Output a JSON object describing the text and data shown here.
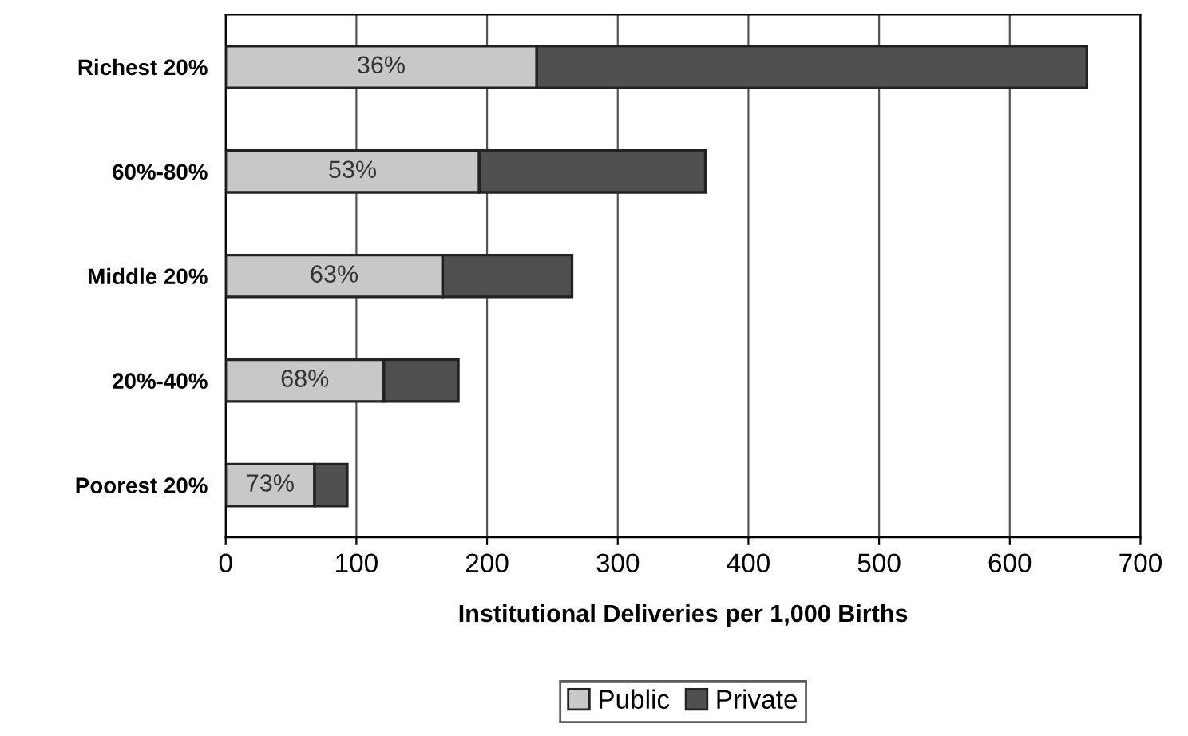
{
  "chart_data": {
    "type": "bar",
    "orientation": "horizontal",
    "stacked": true,
    "xlabel": "Institutional Deliveries per 1,000 Births",
    "categories": [
      "Richest 20%",
      "60%-80%",
      "Middle 20%",
      "20%-40%",
      "Poorest 20%"
    ],
    "series": [
      {
        "name": "Public",
        "color": "#c8c8c8",
        "values": [
          238,
          194,
          166,
          121,
          68
        ]
      },
      {
        "name": "Private",
        "color": "#505050",
        "values": [
          421,
          173,
          99,
          57,
          25
        ]
      }
    ],
    "annotations": [
      "36%",
      "53%",
      "63%",
      "68%",
      "73%"
    ],
    "xlim": [
      0,
      700
    ],
    "xticks": [
      0,
      100,
      200,
      300,
      400,
      500,
      600,
      700
    ],
    "grid": "x",
    "legend": "bottom"
  }
}
